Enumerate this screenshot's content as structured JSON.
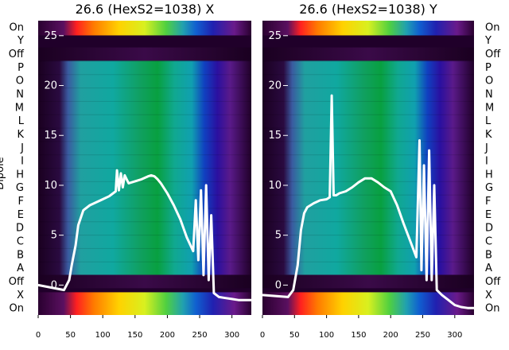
{
  "chart_data": [
    {
      "type": "heatmap",
      "title": "26.6 (HexS2=1038) X",
      "ylabel": "Dipole",
      "xlim": [
        0,
        330
      ],
      "ylim": [
        -3,
        26.5
      ],
      "x_ticks": [
        0,
        50,
        100,
        150,
        200,
        250,
        300
      ],
      "y_ticks": [
        0,
        5,
        10,
        15,
        20,
        25
      ],
      "row_labels": [
        "On",
        "Y",
        "Off",
        "P",
        "O",
        "N",
        "M",
        "L",
        "K",
        "J",
        "I",
        "H",
        "G",
        "F",
        "E",
        "D",
        "C",
        "B",
        "A",
        "Off",
        "X",
        "On"
      ],
      "series": [
        {
          "name": "",
          "x": [
            0,
            40,
            48,
            52,
            58,
            62,
            70,
            80,
            90,
            100,
            110,
            120,
            122,
            125,
            128,
            131,
            134,
            140,
            150,
            160,
            170,
            175,
            180,
            185,
            190,
            200,
            210,
            220,
            230,
            240,
            244,
            248,
            252,
            256,
            260,
            264,
            268,
            272,
            280,
            290,
            300,
            310,
            320,
            330
          ],
          "y": [
            0.0,
            -0.5,
            0.5,
            2.0,
            4.0,
            6.0,
            7.5,
            8.0,
            8.3,
            8.6,
            8.9,
            9.4,
            11.5,
            9.5,
            11.2,
            9.8,
            11.0,
            10.2,
            10.4,
            10.6,
            10.9,
            11.0,
            10.9,
            10.6,
            10.2,
            9.2,
            8.0,
            6.6,
            4.8,
            3.4,
            8.5,
            2.5,
            9.5,
            1.0,
            10.0,
            0.5,
            7.0,
            -0.8,
            -1.2,
            -1.3,
            -1.4,
            -1.5,
            -1.5,
            -1.5
          ]
        }
      ]
    },
    {
      "type": "heatmap",
      "title": "26.6 (HexS2=1038) Y",
      "ylabel": "",
      "xlim": [
        0,
        330
      ],
      "ylim": [
        -3,
        26.5
      ],
      "x_ticks": [
        0,
        50,
        100,
        150,
        200,
        250,
        300
      ],
      "y_ticks": [
        0,
        5,
        10,
        15,
        20,
        25
      ],
      "row_labels": [
        "On",
        "Y",
        "Off",
        "P",
        "O",
        "N",
        "M",
        "L",
        "K",
        "J",
        "I",
        "H",
        "G",
        "F",
        "E",
        "D",
        "C",
        "B",
        "A",
        "Off",
        "X",
        "On"
      ],
      "series": [
        {
          "name": "",
          "x": [
            0,
            40,
            48,
            55,
            60,
            65,
            70,
            80,
            90,
            100,
            105,
            108,
            111,
            115,
            120,
            130,
            140,
            150,
            160,
            170,
            180,
            190,
            200,
            210,
            220,
            230,
            240,
            245,
            248,
            252,
            256,
            260,
            264,
            268,
            272,
            280,
            290,
            300,
            310,
            320,
            330
          ],
          "y": [
            -1.0,
            -1.2,
            -0.5,
            2.0,
            5.5,
            7.2,
            7.8,
            8.2,
            8.5,
            8.6,
            8.8,
            19.0,
            9.0,
            9.0,
            9.2,
            9.4,
            9.8,
            10.3,
            10.7,
            10.7,
            10.3,
            9.8,
            9.4,
            8.0,
            6.2,
            4.5,
            2.8,
            14.5,
            1.5,
            12.0,
            0.5,
            13.5,
            0.5,
            10.0,
            -0.5,
            -1.0,
            -1.5,
            -2.0,
            -2.2,
            -2.3,
            -2.3
          ]
        }
      ]
    }
  ]
}
